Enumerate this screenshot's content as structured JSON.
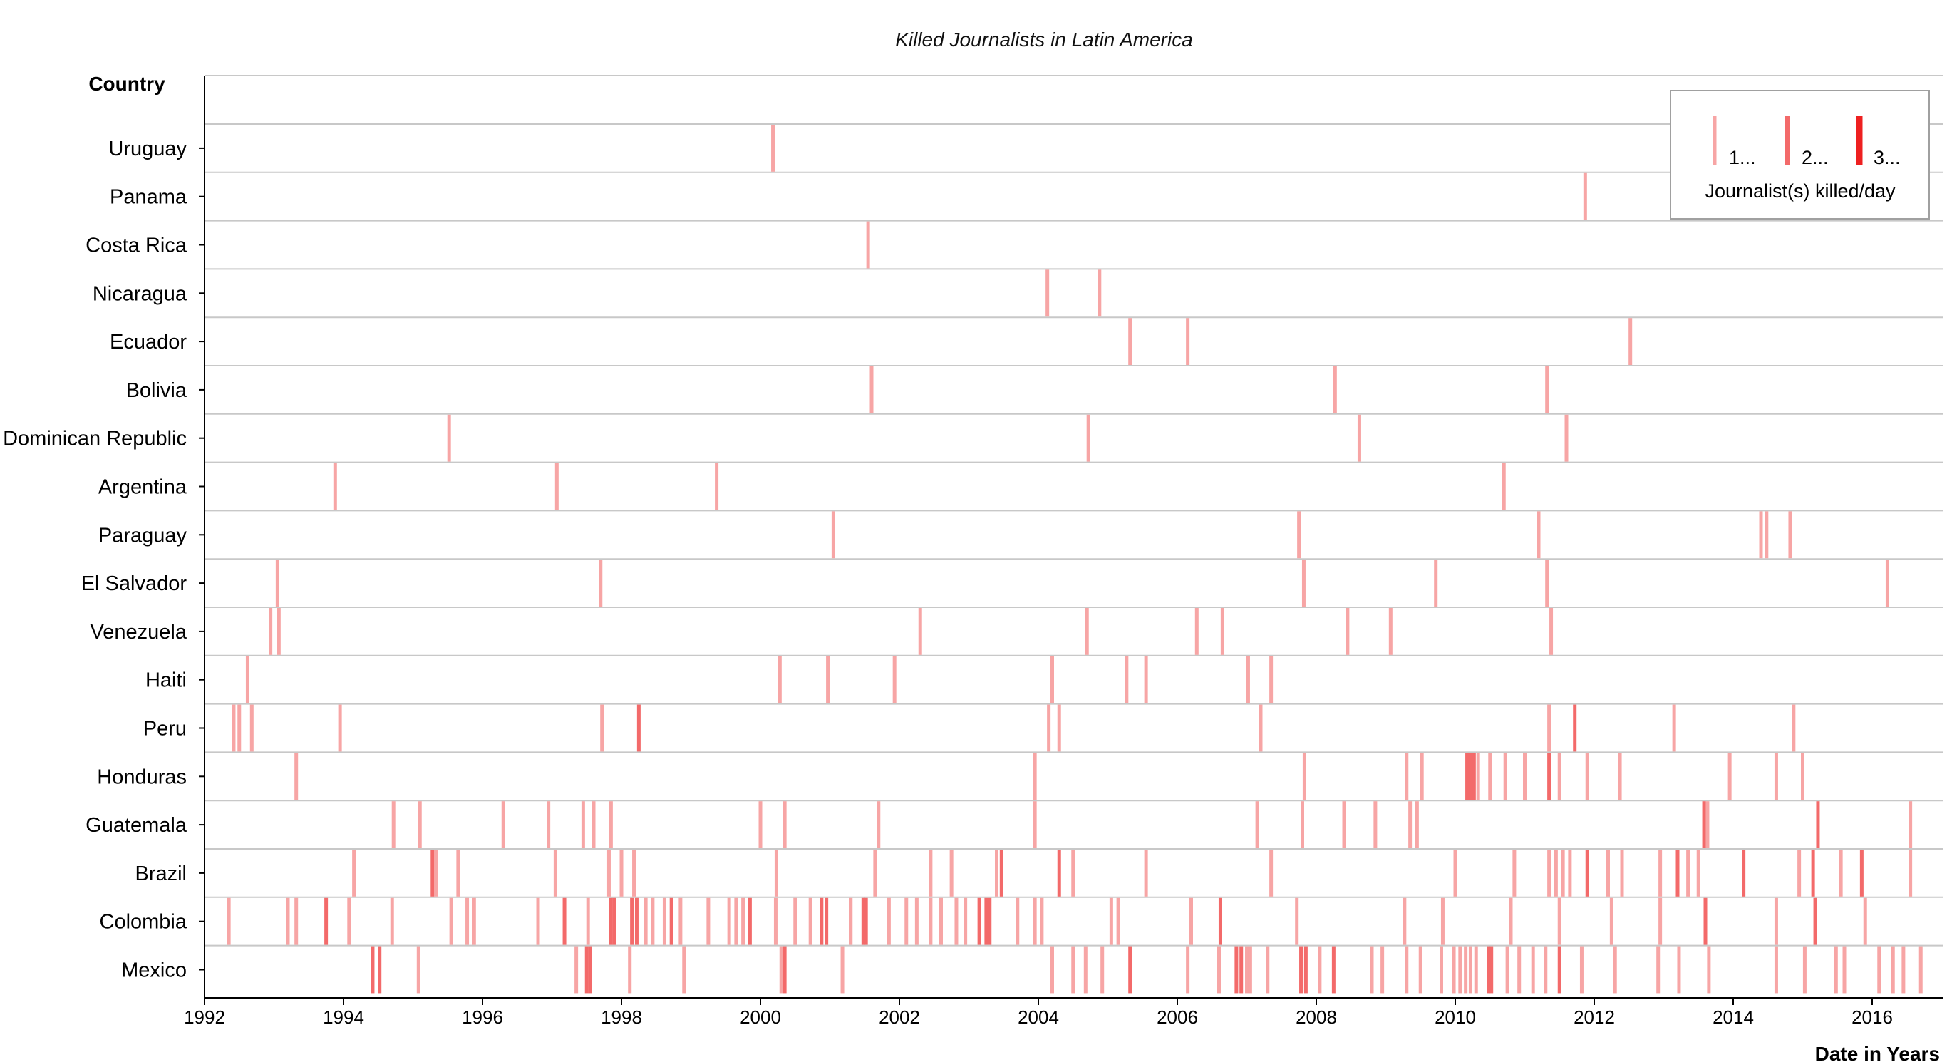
{
  "chart_data": {
    "type": "event-strip",
    "title": "Killed Journalists in Latin America",
    "y_axis_title": "Country",
    "x_axis_title": "Date in Years",
    "x_range": [
      1992,
      2016.6
    ],
    "x_ticks": [
      "1992",
      "1994",
      "1996",
      "1998",
      "2000",
      "2002",
      "2004",
      "2006",
      "2008",
      "2010",
      "2012",
      "2014",
      "2016"
    ],
    "legend": {
      "title": "Journalist(s) killed/day",
      "placement": "top-right",
      "items": [
        {
          "label": "1...",
          "count": 1
        },
        {
          "label": "2...",
          "count": 2
        },
        {
          "label": "3...",
          "count": 3
        }
      ]
    },
    "colors": {
      "1": "#f7a5a5",
      "2": "#f36a6a",
      "3": "#ee2020"
    },
    "countries": [
      {
        "name": "Uruguay",
        "events": [
          [
            2000.18,
            1
          ]
        ]
      },
      {
        "name": "Panama",
        "events": [
          [
            2011.87,
            1
          ]
        ]
      },
      {
        "name": "Costa Rica",
        "events": [
          [
            2001.55,
            1
          ]
        ]
      },
      {
        "name": "Nicaragua",
        "events": [
          [
            2004.13,
            1
          ],
          [
            2004.88,
            1
          ]
        ]
      },
      {
        "name": "Ecuador",
        "events": [
          [
            2005.32,
            1
          ],
          [
            2006.15,
            1
          ],
          [
            2012.52,
            1
          ]
        ]
      },
      {
        "name": "Bolivia",
        "events": [
          [
            2001.6,
            1
          ],
          [
            2008.27,
            1
          ],
          [
            2011.32,
            1
          ]
        ]
      },
      {
        "name": "Dominican Republic",
        "events": [
          [
            1995.52,
            1
          ],
          [
            2004.72,
            1
          ],
          [
            2008.62,
            1
          ],
          [
            2011.6,
            1
          ]
        ]
      },
      {
        "name": "Argentina",
        "events": [
          [
            1993.88,
            1
          ],
          [
            1997.07,
            1
          ],
          [
            1999.37,
            1
          ],
          [
            2010.7,
            1
          ]
        ]
      },
      {
        "name": "Paraguay",
        "events": [
          [
            2001.05,
            1
          ],
          [
            2007.75,
            1
          ],
          [
            2011.2,
            1
          ],
          [
            2014.4,
            1
          ],
          [
            2014.48,
            1
          ],
          [
            2014.82,
            1
          ]
        ]
      },
      {
        "name": "El Salvador",
        "events": [
          [
            1993.05,
            1
          ],
          [
            1997.7,
            1
          ],
          [
            2007.82,
            1
          ],
          [
            2009.72,
            1
          ],
          [
            2011.32,
            1
          ],
          [
            2016.22,
            1
          ]
        ]
      },
      {
        "name": "Venezuela",
        "events": [
          [
            1992.95,
            1
          ],
          [
            1993.07,
            1
          ],
          [
            2002.3,
            1
          ],
          [
            2004.7,
            1
          ],
          [
            2006.28,
            1
          ],
          [
            2006.65,
            1
          ],
          [
            2008.45,
            1
          ],
          [
            2009.07,
            1
          ],
          [
            2011.38,
            1
          ]
        ]
      },
      {
        "name": "Haiti",
        "events": [
          [
            1992.62,
            1
          ],
          [
            2000.28,
            1
          ],
          [
            2000.97,
            1
          ],
          [
            2001.93,
            1
          ],
          [
            2004.2,
            1
          ],
          [
            2005.27,
            1
          ],
          [
            2005.55,
            1
          ],
          [
            2007.02,
            1
          ],
          [
            2007.35,
            1
          ]
        ]
      },
      {
        "name": "Peru",
        "events": [
          [
            1992.42,
            1
          ],
          [
            1992.5,
            1
          ],
          [
            1992.68,
            1
          ],
          [
            1993.95,
            1
          ],
          [
            1997.72,
            1
          ],
          [
            1998.25,
            2
          ],
          [
            2004.15,
            1
          ],
          [
            2004.3,
            1
          ],
          [
            2007.2,
            1
          ],
          [
            2011.35,
            1
          ],
          [
            2011.72,
            2
          ],
          [
            2013.15,
            1
          ],
          [
            2014.87,
            1
          ]
        ]
      },
      {
        "name": "Honduras",
        "events": [
          [
            1993.32,
            1
          ],
          [
            2003.95,
            1
          ],
          [
            2007.83,
            1
          ],
          [
            2009.3,
            1
          ],
          [
            2009.52,
            1
          ],
          [
            2010.17,
            2
          ],
          [
            2010.22,
            2
          ],
          [
            2010.27,
            2
          ],
          [
            2010.33,
            1
          ],
          [
            2010.5,
            1
          ],
          [
            2010.72,
            1
          ],
          [
            2011.0,
            1
          ],
          [
            2011.35,
            2
          ],
          [
            2011.5,
            1
          ],
          [
            2011.9,
            1
          ],
          [
            2012.37,
            1
          ],
          [
            2013.95,
            1
          ],
          [
            2014.62,
            1
          ],
          [
            2015.0,
            1
          ]
        ]
      },
      {
        "name": "Guatemala",
        "events": [
          [
            1994.72,
            1
          ],
          [
            1995.1,
            1
          ],
          [
            1996.3,
            1
          ],
          [
            1996.95,
            1
          ],
          [
            1997.45,
            1
          ],
          [
            1997.6,
            1
          ],
          [
            1997.85,
            1
          ],
          [
            2000.0,
            1
          ],
          [
            2000.35,
            1
          ],
          [
            2001.7,
            1
          ],
          [
            2003.95,
            1
          ],
          [
            2007.15,
            1
          ],
          [
            2007.8,
            1
          ],
          [
            2008.4,
            1
          ],
          [
            2008.85,
            1
          ],
          [
            2009.35,
            1
          ],
          [
            2009.45,
            1
          ],
          [
            2013.58,
            2
          ],
          [
            2013.63,
            1
          ],
          [
            2015.22,
            2
          ],
          [
            2016.55,
            1
          ]
        ]
      },
      {
        "name": "Brazil",
        "events": [
          [
            1994.15,
            1
          ],
          [
            1995.28,
            2
          ],
          [
            1995.33,
            1
          ],
          [
            1995.65,
            1
          ],
          [
            1997.05,
            1
          ],
          [
            1997.82,
            1
          ],
          [
            1998.0,
            1
          ],
          [
            1998.18,
            1
          ],
          [
            2000.23,
            1
          ],
          [
            2001.65,
            1
          ],
          [
            2002.45,
            1
          ],
          [
            2002.75,
            1
          ],
          [
            2003.4,
            1
          ],
          [
            2003.47,
            2
          ],
          [
            2004.3,
            2
          ],
          [
            2004.5,
            1
          ],
          [
            2005.55,
            1
          ],
          [
            2007.35,
            1
          ],
          [
            2010.0,
            1
          ],
          [
            2010.85,
            1
          ],
          [
            2011.35,
            1
          ],
          [
            2011.45,
            1
          ],
          [
            2011.55,
            1
          ],
          [
            2011.65,
            1
          ],
          [
            2011.9,
            2
          ],
          [
            2012.2,
            1
          ],
          [
            2012.4,
            1
          ],
          [
            2012.95,
            1
          ],
          [
            2013.2,
            2
          ],
          [
            2013.35,
            1
          ],
          [
            2013.5,
            1
          ],
          [
            2014.15,
            2
          ],
          [
            2014.95,
            1
          ],
          [
            2015.15,
            2
          ],
          [
            2015.55,
            1
          ],
          [
            2015.85,
            2
          ],
          [
            2016.55,
            1
          ]
        ]
      },
      {
        "name": "Colombia",
        "events": [
          [
            1992.35,
            1
          ],
          [
            1993.2,
            1
          ],
          [
            1993.32,
            1
          ],
          [
            1993.75,
            2
          ],
          [
            1994.08,
            1
          ],
          [
            1994.7,
            1
          ],
          [
            1995.55,
            1
          ],
          [
            1995.78,
            1
          ],
          [
            1995.88,
            1
          ],
          [
            1996.8,
            1
          ],
          [
            1997.18,
            2
          ],
          [
            1997.52,
            1
          ],
          [
            1997.85,
            2
          ],
          [
            1997.9,
            2
          ],
          [
            1998.15,
            2
          ],
          [
            1998.22,
            2
          ],
          [
            1998.35,
            1
          ],
          [
            1998.45,
            1
          ],
          [
            1998.62,
            1
          ],
          [
            1998.72,
            2
          ],
          [
            1998.85,
            1
          ],
          [
            1999.25,
            1
          ],
          [
            1999.55,
            1
          ],
          [
            1999.65,
            1
          ],
          [
            1999.75,
            1
          ],
          [
            1999.85,
            2
          ],
          [
            2000.22,
            1
          ],
          [
            2000.5,
            1
          ],
          [
            2000.72,
            1
          ],
          [
            2000.88,
            2
          ],
          [
            2000.95,
            2
          ],
          [
            2001.3,
            1
          ],
          [
            2001.48,
            2
          ],
          [
            2001.52,
            2
          ],
          [
            2001.85,
            1
          ],
          [
            2002.1,
            1
          ],
          [
            2002.25,
            1
          ],
          [
            2002.45,
            1
          ],
          [
            2002.6,
            1
          ],
          [
            2002.82,
            1
          ],
          [
            2002.95,
            1
          ],
          [
            2003.15,
            2
          ],
          [
            2003.25,
            2
          ],
          [
            2003.3,
            2
          ],
          [
            2003.7,
            1
          ],
          [
            2003.95,
            1
          ],
          [
            2004.05,
            1
          ],
          [
            2005.05,
            1
          ],
          [
            2005.15,
            1
          ],
          [
            2006.2,
            1
          ],
          [
            2006.62,
            2
          ],
          [
            2007.72,
            1
          ],
          [
            2009.27,
            1
          ],
          [
            2009.82,
            1
          ],
          [
            2010.8,
            1
          ],
          [
            2011.5,
            1
          ],
          [
            2012.25,
            1
          ],
          [
            2012.95,
            1
          ],
          [
            2013.6,
            2
          ],
          [
            2014.62,
            1
          ],
          [
            2015.18,
            2
          ],
          [
            2015.9,
            1
          ]
        ]
      },
      {
        "name": "Mexico",
        "events": [
          [
            1994.42,
            2
          ],
          [
            1994.52,
            2
          ],
          [
            1995.08,
            1
          ],
          [
            1997.35,
            1
          ],
          [
            1997.5,
            2
          ],
          [
            1997.55,
            2
          ],
          [
            1998.12,
            1
          ],
          [
            1998.9,
            1
          ],
          [
            2000.3,
            1
          ],
          [
            2000.35,
            2
          ],
          [
            2001.18,
            1
          ],
          [
            2004.2,
            1
          ],
          [
            2004.5,
            1
          ],
          [
            2004.68,
            1
          ],
          [
            2004.92,
            1
          ],
          [
            2005.32,
            2
          ],
          [
            2006.15,
            1
          ],
          [
            2006.6,
            1
          ],
          [
            2006.85,
            2
          ],
          [
            2006.92,
            2
          ],
          [
            2007.0,
            1
          ],
          [
            2007.05,
            1
          ],
          [
            2007.3,
            1
          ],
          [
            2007.78,
            2
          ],
          [
            2007.85,
            2
          ],
          [
            2008.05,
            1
          ],
          [
            2008.25,
            2
          ],
          [
            2008.8,
            1
          ],
          [
            2008.95,
            1
          ],
          [
            2009.3,
            1
          ],
          [
            2009.5,
            1
          ],
          [
            2009.8,
            1
          ],
          [
            2009.98,
            1
          ],
          [
            2010.07,
            1
          ],
          [
            2010.15,
            1
          ],
          [
            2010.22,
            1
          ],
          [
            2010.3,
            1
          ],
          [
            2010.48,
            2
          ],
          [
            2010.52,
            2
          ],
          [
            2010.75,
            1
          ],
          [
            2010.92,
            1
          ],
          [
            2011.12,
            1
          ],
          [
            2011.3,
            1
          ],
          [
            2011.5,
            2
          ],
          [
            2011.82,
            1
          ],
          [
            2012.3,
            1
          ],
          [
            2012.92,
            1
          ],
          [
            2013.22,
            1
          ],
          [
            2013.65,
            1
          ],
          [
            2014.62,
            1
          ],
          [
            2015.03,
            1
          ],
          [
            2015.48,
            1
          ],
          [
            2015.6,
            1
          ],
          [
            2016.1,
            1
          ],
          [
            2016.3,
            1
          ],
          [
            2016.45,
            1
          ],
          [
            2016.7,
            1
          ]
        ]
      }
    ]
  }
}
